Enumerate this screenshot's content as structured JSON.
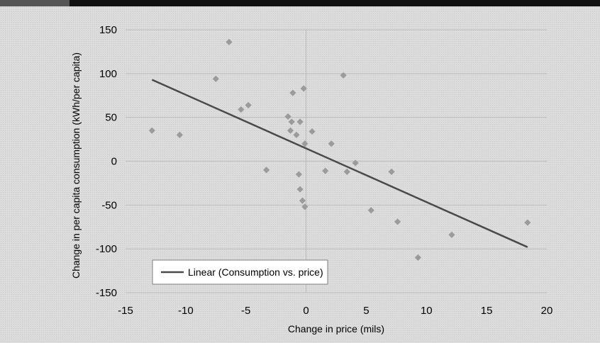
{
  "banner": {
    "title_fragment": ""
  },
  "chart_data": {
    "type": "scatter",
    "xlabel": "Change in price (mils)",
    "ylabel": "Change in per capita consumption (kWh/per capita)",
    "xlim": [
      -15,
      20
    ],
    "ylim": [
      -150,
      150
    ],
    "x_ticks": [
      -15,
      -10,
      -5,
      0,
      5,
      10,
      15,
      20
    ],
    "y_ticks": [
      150,
      100,
      50,
      0,
      -50,
      -100,
      -150
    ],
    "grid": "horizontal",
    "legend_position": "bottom-left",
    "series": [
      {
        "type": "scatter",
        "marker": "diamond",
        "color": "#9b9b9b",
        "points": [
          {
            "x": -12.8,
            "y": 35
          },
          {
            "x": -10.5,
            "y": 30
          },
          {
            "x": -7.5,
            "y": 94
          },
          {
            "x": -6.4,
            "y": 136
          },
          {
            "x": -5.4,
            "y": 59
          },
          {
            "x": -4.8,
            "y": 64
          },
          {
            "x": -3.3,
            "y": -10
          },
          {
            "x": -1.5,
            "y": 51
          },
          {
            "x": -1.3,
            "y": 35
          },
          {
            "x": -1.2,
            "y": 45
          },
          {
            "x": -1.1,
            "y": 78
          },
          {
            "x": -0.8,
            "y": 30
          },
          {
            "x": -0.5,
            "y": 45
          },
          {
            "x": -0.6,
            "y": -15
          },
          {
            "x": -0.5,
            "y": -32
          },
          {
            "x": -0.2,
            "y": 83
          },
          {
            "x": -0.1,
            "y": 20
          },
          {
            "x": -0.3,
            "y": -45
          },
          {
            "x": -0.1,
            "y": -52
          },
          {
            "x": 0.5,
            "y": 34
          },
          {
            "x": 1.6,
            "y": -11
          },
          {
            "x": 2.1,
            "y": 20
          },
          {
            "x": 3.1,
            "y": 98
          },
          {
            "x": 3.4,
            "y": -12
          },
          {
            "x": 4.1,
            "y": -2
          },
          {
            "x": 5.4,
            "y": -56
          },
          {
            "x": 7.1,
            "y": -12
          },
          {
            "x": 7.6,
            "y": -69
          },
          {
            "x": 9.3,
            "y": -110
          },
          {
            "x": 12.1,
            "y": -84
          },
          {
            "x": 18.4,
            "y": -70
          }
        ]
      },
      {
        "name": "Linear (Consumption vs. price)",
        "type": "line",
        "color": "#4a4a4a",
        "x": [
          -12.8,
          18.4
        ],
        "y": [
          93,
          -98
        ]
      }
    ]
  }
}
